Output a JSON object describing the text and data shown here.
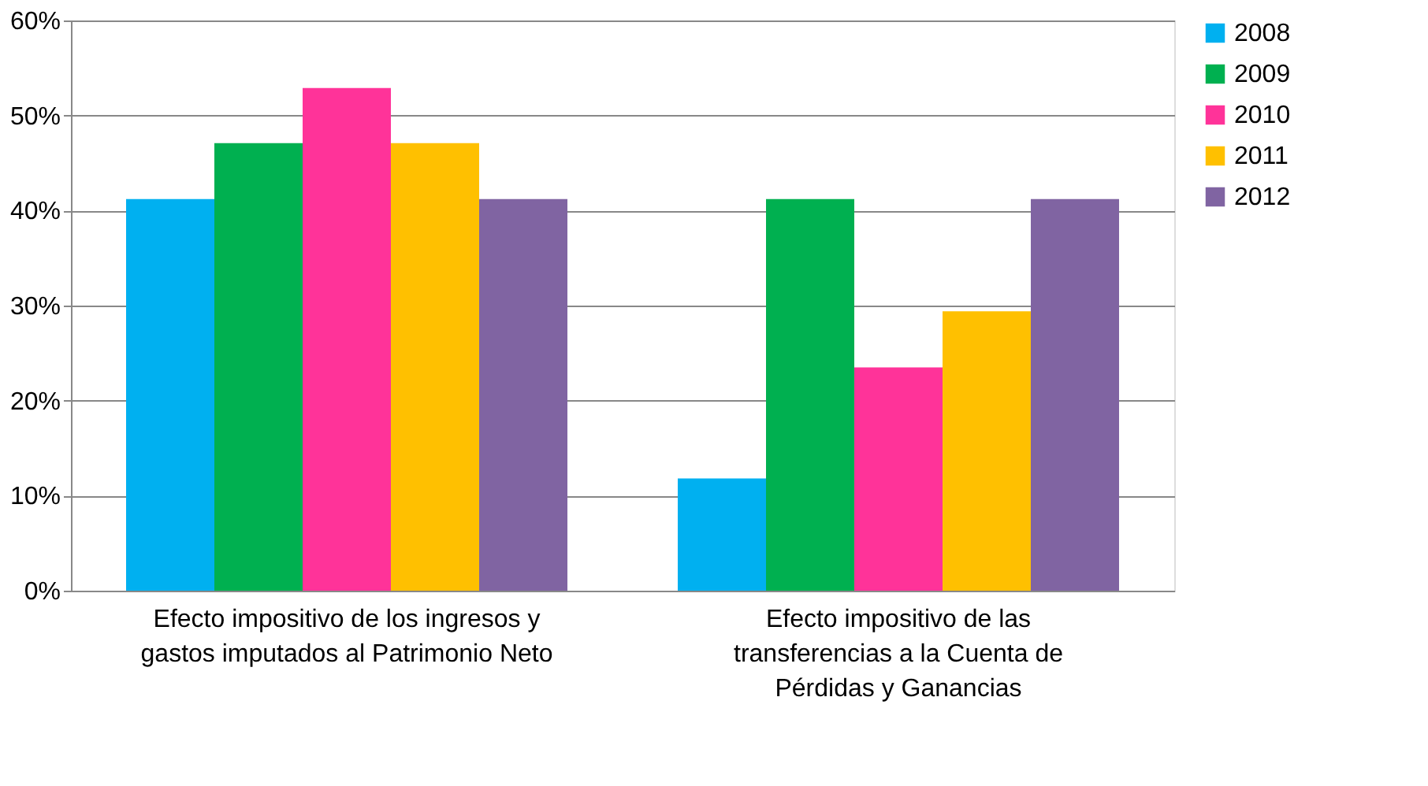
{
  "chart_data": {
    "type": "bar",
    "categories": [
      "Efecto impositivo de los ingresos y gastos imputados al Patrimonio Neto",
      "Efecto impositivo de las transferencias a la Cuenta de Pérdidas y Ganancias"
    ],
    "series": [
      {
        "name": "2008",
        "color": "#00b0f0",
        "values": [
          0.412,
          0.118
        ]
      },
      {
        "name": "2009",
        "color": "#00b050",
        "values": [
          0.471,
          0.412
        ]
      },
      {
        "name": "2010",
        "color": "#ff3399",
        "values": [
          0.529,
          0.235
        ]
      },
      {
        "name": "2011",
        "color": "#ffc000",
        "values": [
          0.471,
          0.294
        ]
      },
      {
        "name": "2012",
        "color": "#8064a2",
        "values": [
          0.412,
          0.412
        ]
      }
    ],
    "ylim": [
      0,
      0.6
    ],
    "yticks": [
      {
        "value": 0,
        "label": "0%"
      },
      {
        "value": 0.1,
        "label": "10%"
      },
      {
        "value": 0.2,
        "label": "20%"
      },
      {
        "value": 0.3,
        "label": "30%"
      },
      {
        "value": 0.4,
        "label": "40%"
      },
      {
        "value": 0.5,
        "label": "50%"
      },
      {
        "value": 0.6,
        "label": "60%"
      }
    ],
    "grid": "y",
    "legend": "right"
  }
}
